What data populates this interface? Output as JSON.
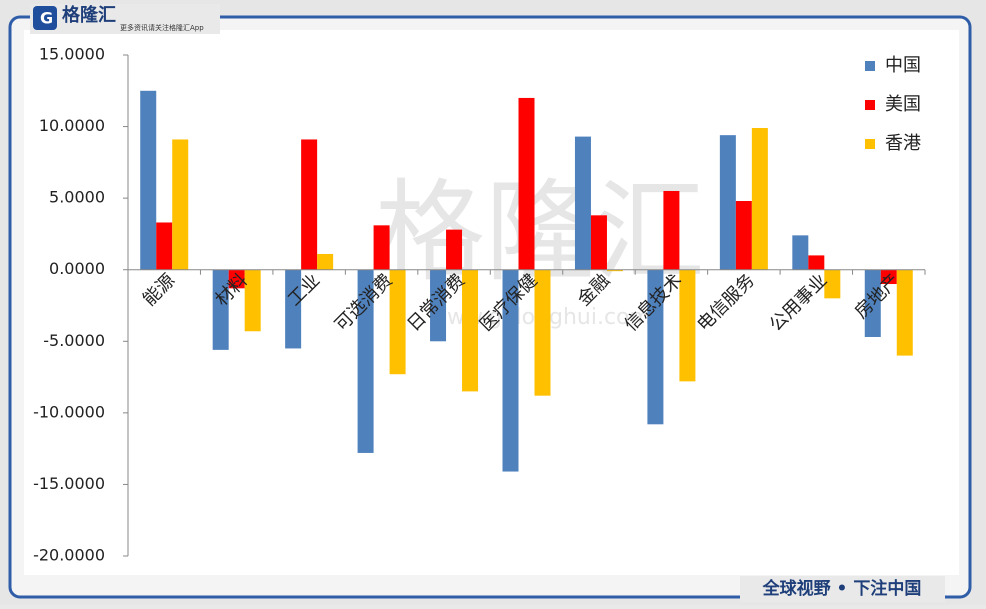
{
  "logo_text": "格隆汇",
  "logo_tagline": "更多资讯请关注格隆汇App",
  "footer_slogan": "全球视野 • 下注中国",
  "watermark": "格隆汇",
  "watermark_url": "www.gelonghui.com",
  "chart_data": {
    "type": "bar",
    "categories": [
      "能源",
      "材料",
      "工业",
      "可选消费",
      "日常消费",
      "医疗保健",
      "金融",
      "信息技术",
      "电信服务",
      "公用事业",
      "房地产"
    ],
    "series": [
      {
        "name": "中国",
        "color": "#4f81bd",
        "values": [
          12.5,
          -5.6,
          -5.5,
          -12.8,
          -5.0,
          -14.1,
          9.3,
          -10.8,
          9.4,
          2.4,
          -4.7
        ]
      },
      {
        "name": "美国",
        "color": "#ff0000",
        "values": [
          3.3,
          -1.3,
          9.1,
          3.1,
          2.8,
          12.0,
          3.8,
          5.5,
          4.8,
          1.0,
          -1.0
        ]
      },
      {
        "name": "香港",
        "color": "#ffc000",
        "values": [
          9.1,
          -4.3,
          1.1,
          -7.3,
          -8.5,
          -8.8,
          -0.1,
          -7.8,
          9.9,
          -2.0,
          -6.0
        ]
      }
    ],
    "ylim": [
      -20,
      15
    ],
    "yticks": [
      {
        "value": -20,
        "label": "-20.0000"
      },
      {
        "value": -15,
        "label": "-15.0000"
      },
      {
        "value": -10,
        "label": "-10.0000"
      },
      {
        "value": -5,
        "label": "-5.0000"
      },
      {
        "value": 0,
        "label": "0.0000"
      },
      {
        "value": 5,
        "label": "5.0000"
      },
      {
        "value": 10,
        "label": "10.0000"
      },
      {
        "value": 15,
        "label": "15.0000"
      }
    ],
    "legend": "top-right"
  }
}
